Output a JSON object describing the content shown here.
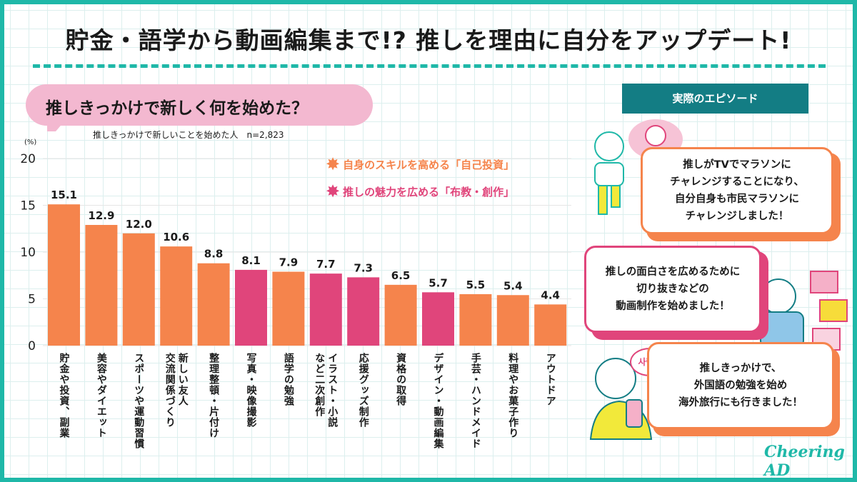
{
  "title": "貯金・語学から動画編集まで!? 推しを理由に自分をアップデート!",
  "question": "推しきっかけで新しく何を始めた？",
  "colors": {
    "accent": "#1fb8a8",
    "self_investment": "#f5844c",
    "propagation": "#e0457b",
    "header": "#137d84"
  },
  "chart_data": {
    "type": "bar",
    "subtitle": "推しきっかけで新しいことを始めた人　n=2,823",
    "ylabel": "(%)",
    "ylim": [
      0,
      20
    ],
    "yticks": [
      0,
      5,
      10,
      15,
      20
    ],
    "grid": true,
    "legend_placement": "top-right",
    "legend": [
      {
        "name": "自身のスキルを高める「自己投資」",
        "color": "#f5844c",
        "icon": "star-icon"
      },
      {
        "name": "推しの魅力を広める「布教・創作」",
        "color": "#e0457b",
        "icon": "star-icon"
      }
    ],
    "categories": [
      "貯金や投資、副業",
      "美容やダイエット",
      "スポーツや運動習慣",
      "新しい友人\n交流関係づくり",
      "整理整頓・片付け",
      "写真・映像撮影",
      "語学の勉強",
      "イラスト・小説\nなど二次創作",
      "応援グッズ制作",
      "資格の取得",
      "デザイン・動画編集",
      "手芸・ハンドメイド",
      "料理やお菓子作り",
      "アウトドア"
    ],
    "values": [
      15.1,
      12.9,
      12.0,
      10.6,
      8.8,
      8.1,
      7.9,
      7.7,
      7.3,
      6.5,
      5.7,
      5.5,
      5.4,
      4.4
    ],
    "value_labels": [
      "15.1",
      "12.9",
      "12.0",
      "10.6",
      "8.8",
      "8.1",
      "7.9",
      "7.7",
      "7.3",
      "6.5",
      "5.7",
      "5.5",
      "5.4",
      "4.4"
    ],
    "groups": [
      0,
      0,
      0,
      0,
      0,
      1,
      0,
      1,
      1,
      0,
      1,
      0,
      0,
      0
    ]
  },
  "episodes": {
    "header": "実際のエピソード",
    "items": [
      {
        "text": "推しがTVでマラソンに\nチャレンジすることになり、\n自分自身も市民マラソンに\nチャレンジしました！"
      },
      {
        "text": "推しの面白さを広めるために\n切り抜きなどの\n動画制作を始めました！"
      },
      {
        "text": "推しきっかけで、\n外国語の勉強を始め\n海外旅行にも行きました！"
      }
    ],
    "speech_korean": "사랑해"
  },
  "logo": "CheeringAD"
}
